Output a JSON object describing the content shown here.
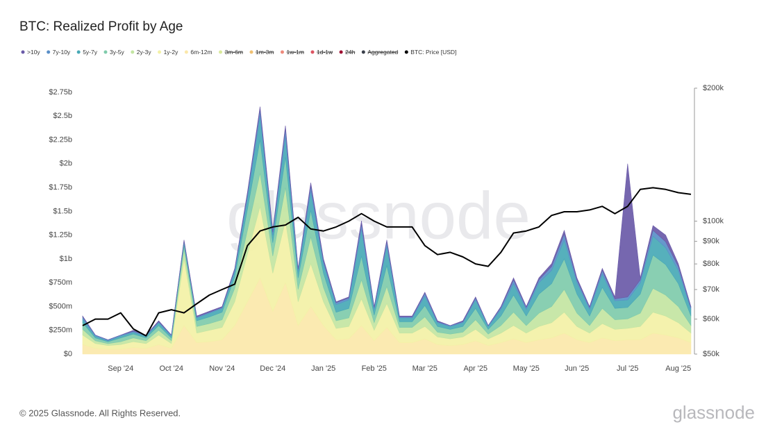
{
  "chart_data": {
    "type": "stacked-area",
    "title": "BTC: Realized Profit by Age",
    "footer": "© 2025 Glassnode. All Rights Reserved.",
    "logo": "glassnode",
    "watermark": "glassnode",
    "categories": [
      null,
      null,
      null,
      "Sep '24",
      null,
      null,
      null,
      "Oct '24",
      null,
      null,
      null,
      "Nov '24",
      null,
      null,
      null,
      "Dec '24",
      null,
      null,
      null,
      "Jan '25",
      null,
      null,
      null,
      "Feb '25",
      null,
      null,
      null,
      "Mar '25",
      null,
      null,
      null,
      "Apr '25",
      null,
      null,
      null,
      "May '25",
      null,
      null,
      null,
      "Jun '25",
      null,
      null,
      null,
      "Jul '25",
      null,
      null,
      null,
      "Aug '25",
      null
    ],
    "ylim": [
      0,
      2.75
    ],
    "yticks": [
      {
        "value": 0,
        "label": "$0"
      },
      {
        "value": 0.25,
        "label": "$250m"
      },
      {
        "value": 0.5,
        "label": "$500m"
      },
      {
        "value": 0.75,
        "label": "$750m"
      },
      {
        "value": 1,
        "label": "$1b"
      },
      {
        "value": 1.25,
        "label": "$1.25b"
      },
      {
        "value": 1.5,
        "label": "$1.5b"
      },
      {
        "value": 1.75,
        "label": "$1.75b"
      },
      {
        "value": 2,
        "label": "$2b"
      },
      {
        "value": 2.25,
        "label": "$2.25b"
      },
      {
        "value": 2.5,
        "label": "$2.5b"
      },
      {
        "value": 2.75,
        "label": "$2.75b"
      }
    ],
    "y2lim": [
      50000,
      200000
    ],
    "y2log": true,
    "y2ticks": [
      {
        "value": 50000,
        "label": "$50k"
      },
      {
        "value": 60000,
        "label": "$60k"
      },
      {
        "value": 70000,
        "label": "$70k"
      },
      {
        "value": 80000,
        "label": "$80k"
      },
      {
        "value": 90000,
        "label": "$90k"
      },
      {
        "value": 100000,
        "label": "$100k"
      },
      {
        "value": 200000,
        "label": "$200k"
      }
    ],
    "grid": false,
    "series": [
      {
        "name": ">10y",
        "color": "#6a5aa8",
        "values": [
          0.01,
          0,
          0,
          0,
          0.01,
          0,
          0.01,
          0,
          0.01,
          0.01,
          0.01,
          0.01,
          0.01,
          0.02,
          0.03,
          0.02,
          0.03,
          0.01,
          0.03,
          0.02,
          0.01,
          0.01,
          0.03,
          0.01,
          0.02,
          0.01,
          0.01,
          0.01,
          0.01,
          0,
          0.01,
          0.01,
          0,
          0.01,
          0.02,
          0.01,
          0.02,
          0.03,
          0.04,
          0.02,
          0.01,
          0.02,
          0.02,
          1.4,
          0.02,
          0.05,
          0.07,
          0.03,
          0.01
        ]
      },
      {
        "name": "7y-10y",
        "color": "#5a8fc8",
        "values": [
          0.02,
          0.01,
          0.01,
          0.01,
          0.01,
          0.01,
          0.01,
          0.01,
          0.01,
          0.01,
          0.01,
          0.01,
          0.02,
          0.04,
          0.07,
          0.03,
          0.08,
          0.02,
          0.06,
          0.03,
          0.02,
          0.02,
          0.06,
          0.02,
          0.05,
          0.01,
          0.01,
          0.03,
          0.01,
          0.01,
          0.01,
          0.02,
          0.01,
          0.02,
          0.04,
          0.02,
          0.03,
          0.04,
          0.06,
          0.03,
          0.02,
          0.04,
          0.02,
          0.03,
          0.03,
          0.06,
          0.06,
          0.04,
          0.02
        ]
      },
      {
        "name": "5y-7y",
        "color": "#48a9b6",
        "values": [
          0.04,
          0.02,
          0.01,
          0.02,
          0.02,
          0.02,
          0.03,
          0.02,
          0.03,
          0.03,
          0.04,
          0.04,
          0.06,
          0.12,
          0.25,
          0.08,
          0.22,
          0.07,
          0.2,
          0.1,
          0.08,
          0.09,
          0.28,
          0.06,
          0.2,
          0.04,
          0.04,
          0.1,
          0.04,
          0.03,
          0.04,
          0.09,
          0.03,
          0.07,
          0.12,
          0.07,
          0.12,
          0.14,
          0.2,
          0.12,
          0.07,
          0.14,
          0.08,
          0.08,
          0.12,
          0.2,
          0.18,
          0.14,
          0.07
        ]
      },
      {
        "name": "3y-5y",
        "color": "#7fcbab",
        "values": [
          0.07,
          0.03,
          0.02,
          0.04,
          0.04,
          0.03,
          0.05,
          0.03,
          0.05,
          0.06,
          0.07,
          0.08,
          0.12,
          0.22,
          0.35,
          0.14,
          0.32,
          0.12,
          0.28,
          0.15,
          0.09,
          0.1,
          0.25,
          0.08,
          0.22,
          0.06,
          0.06,
          0.12,
          0.06,
          0.05,
          0.06,
          0.12,
          0.05,
          0.1,
          0.18,
          0.1,
          0.2,
          0.24,
          0.32,
          0.2,
          0.1,
          0.22,
          0.12,
          0.12,
          0.2,
          0.35,
          0.32,
          0.24,
          0.1
        ]
      },
      {
        "name": "2y-3y",
        "color": "#c3e5a2",
        "values": [
          0.06,
          0.03,
          0.02,
          0.03,
          0.04,
          0.03,
          0.05,
          0.03,
          0.1,
          0.07,
          0.07,
          0.08,
          0.14,
          0.25,
          0.35,
          0.18,
          0.35,
          0.13,
          0.28,
          0.15,
          0.08,
          0.09,
          0.2,
          0.08,
          0.18,
          0.06,
          0.06,
          0.1,
          0.05,
          0.05,
          0.05,
          0.1,
          0.05,
          0.08,
          0.14,
          0.08,
          0.14,
          0.17,
          0.24,
          0.14,
          0.08,
          0.16,
          0.1,
          0.1,
          0.14,
          0.25,
          0.22,
          0.17,
          0.08
        ]
      },
      {
        "name": "1y-2y",
        "color": "#f3f1a6",
        "values": [
          0.1,
          0.05,
          0.04,
          0.05,
          0.06,
          0.05,
          0.1,
          0.05,
          0.7,
          0.1,
          0.12,
          0.13,
          0.25,
          0.5,
          0.75,
          0.4,
          0.65,
          0.25,
          0.45,
          0.25,
          0.12,
          0.13,
          0.28,
          0.11,
          0.25,
          0.1,
          0.1,
          0.13,
          0.08,
          0.07,
          0.08,
          0.12,
          0.07,
          0.1,
          0.14,
          0.1,
          0.14,
          0.16,
          0.22,
          0.14,
          0.1,
          0.15,
          0.12,
          0.12,
          0.14,
          0.22,
          0.2,
          0.16,
          0.1
        ]
      },
      {
        "name": "6m-12m",
        "color": "#fbe8aa",
        "values": [
          0.1,
          0.06,
          0.05,
          0.05,
          0.07,
          0.06,
          0.1,
          0.06,
          0.3,
          0.12,
          0.13,
          0.15,
          0.3,
          0.55,
          0.8,
          0.45,
          0.75,
          0.3,
          0.5,
          0.3,
          0.15,
          0.16,
          0.3,
          0.14,
          0.28,
          0.12,
          0.12,
          0.16,
          0.1,
          0.09,
          0.1,
          0.14,
          0.09,
          0.12,
          0.16,
          0.12,
          0.15,
          0.17,
          0.22,
          0.15,
          0.12,
          0.17,
          0.14,
          0.15,
          0.15,
          0.22,
          0.2,
          0.17,
          0.12
        ]
      },
      {
        "name": "3m-6m",
        "color": "#d9e99b",
        "hidden": true
      },
      {
        "name": "1m-3m",
        "color": "#efc072",
        "hidden": true
      },
      {
        "name": "1w-1m",
        "color": "#ee8a7c",
        "hidden": true
      },
      {
        "name": "1d-1w",
        "color": "#dd5462",
        "hidden": true
      },
      {
        "name": "24h",
        "color": "#9e1032",
        "hidden": true
      },
      {
        "name": "Aggregated",
        "color": "#3a3f4a",
        "hidden": true
      },
      {
        "name": "BTC: Price [USD]",
        "color": "#000000",
        "axis": "y2",
        "values": [
          58000,
          60000,
          60000,
          62000,
          57000,
          55000,
          62000,
          63000,
          62000,
          65000,
          68000,
          70000,
          72000,
          88000,
          95000,
          97000,
          98000,
          102000,
          96000,
          95000,
          97000,
          100000,
          104000,
          100000,
          97000,
          97000,
          97000,
          88000,
          84000,
          85000,
          83000,
          80000,
          79000,
          85000,
          94000,
          95000,
          97000,
          103000,
          105000,
          105000,
          106000,
          108000,
          104000,
          108000,
          118000,
          119000,
          118000,
          116000,
          115000
        ]
      }
    ]
  }
}
